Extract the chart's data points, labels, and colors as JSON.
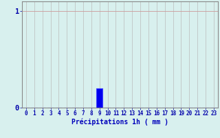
{
  "hours": [
    0,
    1,
    2,
    3,
    4,
    5,
    6,
    7,
    8,
    9,
    10,
    11,
    12,
    13,
    14,
    15,
    16,
    17,
    18,
    19,
    20,
    21,
    22,
    23
  ],
  "values": [
    0,
    0,
    0,
    0,
    0,
    0,
    0,
    0,
    0,
    0.2,
    0,
    0,
    0,
    0,
    0,
    0,
    0,
    0,
    0,
    0,
    0,
    0,
    0,
    0
  ],
  "bar_color": "#0000ee",
  "bar_edge_color": "#4444ff",
  "background_color": "#d8f0ee",
  "xlabel": "Précipitations 1h ( mm )",
  "xlabel_color": "#0000bb",
  "xlabel_fontsize": 7,
  "yticks": [
    0,
    1
  ],
  "ylim": [
    0,
    1.1
  ],
  "xlim": [
    -0.5,
    23.5
  ],
  "grid_color_h": "#cc9999",
  "grid_color_v": "#bbbbbb",
  "tick_color": "#0000aa",
  "tick_fontsize": 5.5,
  "axis_color": "#888888",
  "ylabel_0": "0",
  "ylabel_1": "1"
}
